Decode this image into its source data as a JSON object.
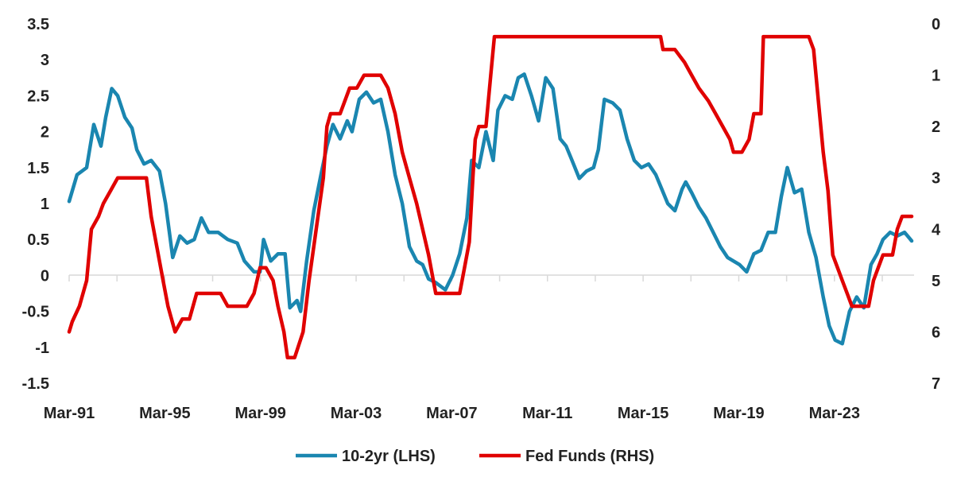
{
  "chart_data": {
    "type": "line",
    "title": "",
    "xlabel": "",
    "ylabel": "",
    "x_ticks": [
      "Mar-91",
      "Mar-95",
      "Mar-99",
      "Mar-03",
      "Mar-07",
      "Mar-11",
      "Mar-15",
      "Mar-19",
      "Mar-23"
    ],
    "y_left_ticks": [
      "3.5",
      "3",
      "2.5",
      "2",
      "1.5",
      "1",
      "0.5",
      "0",
      "-0.5",
      "-1",
      "-1.5"
    ],
    "y_right_ticks": [
      "0",
      "1",
      "2",
      "3",
      "4",
      "5",
      "6",
      "7"
    ],
    "y_left_range": [
      -1.5,
      3.5
    ],
    "y_right_range": [
      7,
      0
    ],
    "y_right_inverted": true,
    "x_range": [
      1991.17,
      2026.5
    ],
    "grid": false,
    "legend_position": "bottom",
    "series": [
      {
        "name": "10-2yr (LHS)",
        "axis": "left",
        "color": "#1a86b0",
        "points": [
          [
            1991.17,
            1.03
          ],
          [
            1991.5,
            1.4
          ],
          [
            1991.9,
            1.5
          ],
          [
            1992.2,
            2.1
          ],
          [
            1992.5,
            1.8
          ],
          [
            1992.7,
            2.2
          ],
          [
            1992.95,
            2.6
          ],
          [
            1993.2,
            2.5
          ],
          [
            1993.5,
            2.2
          ],
          [
            1993.8,
            2.05
          ],
          [
            1994.0,
            1.75
          ],
          [
            1994.3,
            1.55
          ],
          [
            1994.6,
            1.6
          ],
          [
            1994.95,
            1.45
          ],
          [
            1995.2,
            1.0
          ],
          [
            1995.5,
            0.25
          ],
          [
            1995.8,
            0.55
          ],
          [
            1996.1,
            0.45
          ],
          [
            1996.4,
            0.5
          ],
          [
            1996.7,
            0.8
          ],
          [
            1997.0,
            0.6
          ],
          [
            1997.4,
            0.6
          ],
          [
            1997.8,
            0.5
          ],
          [
            1998.2,
            0.45
          ],
          [
            1998.5,
            0.2
          ],
          [
            1998.9,
            0.05
          ],
          [
            1999.15,
            0.05
          ],
          [
            1999.3,
            0.5
          ],
          [
            1999.6,
            0.2
          ],
          [
            1999.9,
            0.3
          ],
          [
            2000.2,
            0.3
          ],
          [
            2000.4,
            -0.45
          ],
          [
            2000.7,
            -0.35
          ],
          [
            2000.85,
            -0.5
          ],
          [
            2001.1,
            0.2
          ],
          [
            2001.4,
            0.9
          ],
          [
            2001.7,
            1.4
          ],
          [
            2001.95,
            1.8
          ],
          [
            2002.2,
            2.1
          ],
          [
            2002.5,
            1.9
          ],
          [
            2002.8,
            2.15
          ],
          [
            2003.0,
            2.0
          ],
          [
            2003.3,
            2.45
          ],
          [
            2003.6,
            2.55
          ],
          [
            2003.9,
            2.4
          ],
          [
            2004.2,
            2.45
          ],
          [
            2004.5,
            2.0
          ],
          [
            2004.8,
            1.4
          ],
          [
            2005.1,
            1.0
          ],
          [
            2005.4,
            0.4
          ],
          [
            2005.7,
            0.2
          ],
          [
            2005.95,
            0.15
          ],
          [
            2006.2,
            -0.05
          ],
          [
            2006.5,
            -0.1
          ],
          [
            2006.9,
            -0.2
          ],
          [
            2007.2,
            0.0
          ],
          [
            2007.5,
            0.3
          ],
          [
            2007.8,
            0.8
          ],
          [
            2008.0,
            1.6
          ],
          [
            2008.3,
            1.5
          ],
          [
            2008.6,
            2.0
          ],
          [
            2008.9,
            1.6
          ],
          [
            2009.1,
            2.3
          ],
          [
            2009.4,
            2.5
          ],
          [
            2009.7,
            2.45
          ],
          [
            2009.95,
            2.75
          ],
          [
            2010.2,
            2.8
          ],
          [
            2010.5,
            2.5
          ],
          [
            2010.8,
            2.15
          ],
          [
            2011.1,
            2.75
          ],
          [
            2011.4,
            2.6
          ],
          [
            2011.7,
            1.9
          ],
          [
            2011.95,
            1.8
          ],
          [
            2012.2,
            1.6
          ],
          [
            2012.5,
            1.35
          ],
          [
            2012.8,
            1.45
          ],
          [
            2013.1,
            1.5
          ],
          [
            2013.3,
            1.75
          ],
          [
            2013.55,
            2.45
          ],
          [
            2013.9,
            2.4
          ],
          [
            2014.2,
            2.3
          ],
          [
            2014.5,
            1.9
          ],
          [
            2014.8,
            1.6
          ],
          [
            2015.1,
            1.5
          ],
          [
            2015.4,
            1.55
          ],
          [
            2015.7,
            1.4
          ],
          [
            2015.95,
            1.2
          ],
          [
            2016.2,
            1.0
          ],
          [
            2016.5,
            0.9
          ],
          [
            2016.8,
            1.2
          ],
          [
            2016.95,
            1.3
          ],
          [
            2017.2,
            1.15
          ],
          [
            2017.5,
            0.95
          ],
          [
            2017.8,
            0.8
          ],
          [
            2018.1,
            0.6
          ],
          [
            2018.4,
            0.4
          ],
          [
            2018.7,
            0.25
          ],
          [
            2018.95,
            0.2
          ],
          [
            2019.2,
            0.15
          ],
          [
            2019.5,
            0.05
          ],
          [
            2019.8,
            0.3
          ],
          [
            2020.1,
            0.35
          ],
          [
            2020.4,
            0.6
          ],
          [
            2020.7,
            0.6
          ],
          [
            2020.95,
            1.1
          ],
          [
            2021.2,
            1.5
          ],
          [
            2021.5,
            1.15
          ],
          [
            2021.8,
            1.2
          ],
          [
            2022.1,
            0.6
          ],
          [
            2022.4,
            0.25
          ],
          [
            2022.7,
            -0.3
          ],
          [
            2022.95,
            -0.7
          ],
          [
            2023.2,
            -0.9
          ],
          [
            2023.5,
            -0.95
          ],
          [
            2023.8,
            -0.5
          ],
          [
            2024.1,
            -0.3
          ],
          [
            2024.4,
            -0.45
          ],
          [
            2024.7,
            0.15
          ],
          [
            2024.95,
            0.3
          ],
          [
            2025.2,
            0.5
          ],
          [
            2025.5,
            0.6
          ],
          [
            2025.8,
            0.55
          ],
          [
            2026.1,
            0.6
          ],
          [
            2026.4,
            0.48
          ]
        ]
      },
      {
        "name": "Fed Funds (RHS)",
        "axis": "right",
        "color": "#e00000",
        "points": [
          [
            1991.17,
            6.0
          ],
          [
            1991.3,
            5.8
          ],
          [
            1991.6,
            5.5
          ],
          [
            1991.9,
            5.0
          ],
          [
            1992.1,
            4.0
          ],
          [
            1992.4,
            3.75
          ],
          [
            1992.6,
            3.5
          ],
          [
            1992.9,
            3.25
          ],
          [
            1993.2,
            3.0
          ],
          [
            1993.5,
            3.0
          ],
          [
            1994.0,
            3.0
          ],
          [
            1994.4,
            3.0
          ],
          [
            1994.6,
            3.75
          ],
          [
            1994.9,
            4.5
          ],
          [
            1995.1,
            5.0
          ],
          [
            1995.3,
            5.5
          ],
          [
            1995.6,
            6.0
          ],
          [
            1995.9,
            5.75
          ],
          [
            1996.2,
            5.75
          ],
          [
            1996.5,
            5.25
          ],
          [
            1997.0,
            5.25
          ],
          [
            1997.5,
            5.25
          ],
          [
            1997.8,
            5.5
          ],
          [
            1998.2,
            5.5
          ],
          [
            1998.6,
            5.5
          ],
          [
            1998.9,
            5.25
          ],
          [
            1999.15,
            4.75
          ],
          [
            1999.4,
            4.75
          ],
          [
            1999.7,
            5.0
          ],
          [
            1999.9,
            5.5
          ],
          [
            2000.15,
            6.0
          ],
          [
            2000.3,
            6.5
          ],
          [
            2000.6,
            6.5
          ],
          [
            2000.95,
            6.0
          ],
          [
            2001.2,
            5.0
          ],
          [
            2001.5,
            4.0
          ],
          [
            2001.8,
            3.0
          ],
          [
            2001.95,
            2.0
          ],
          [
            2002.1,
            1.75
          ],
          [
            2002.5,
            1.75
          ],
          [
            2002.9,
            1.25
          ],
          [
            2003.2,
            1.25
          ],
          [
            2003.5,
            1.0
          ],
          [
            2003.9,
            1.0
          ],
          [
            2004.2,
            1.0
          ],
          [
            2004.5,
            1.25
          ],
          [
            2004.8,
            1.75
          ],
          [
            2005.1,
            2.5
          ],
          [
            2005.4,
            3.0
          ],
          [
            2005.7,
            3.5
          ],
          [
            2005.95,
            4.0
          ],
          [
            2006.2,
            4.5
          ],
          [
            2006.5,
            5.25
          ],
          [
            2006.9,
            5.25
          ],
          [
            2007.2,
            5.25
          ],
          [
            2007.5,
            5.25
          ],
          [
            2007.7,
            4.75
          ],
          [
            2007.9,
            4.25
          ],
          [
            2008.05,
            3.0
          ],
          [
            2008.15,
            2.25
          ],
          [
            2008.3,
            2.0
          ],
          [
            2008.6,
            2.0
          ],
          [
            2008.8,
            1.0
          ],
          [
            2008.95,
            0.25
          ],
          [
            2009.3,
            0.25
          ],
          [
            2010.0,
            0.25
          ],
          [
            2011.0,
            0.25
          ],
          [
            2012.0,
            0.25
          ],
          [
            2013.0,
            0.25
          ],
          [
            2014.0,
            0.25
          ],
          [
            2015.0,
            0.25
          ],
          [
            2015.9,
            0.25
          ],
          [
            2016.0,
            0.5
          ],
          [
            2016.5,
            0.5
          ],
          [
            2016.9,
            0.75
          ],
          [
            2017.2,
            1.0
          ],
          [
            2017.5,
            1.25
          ],
          [
            2017.9,
            1.5
          ],
          [
            2018.2,
            1.75
          ],
          [
            2018.5,
            2.0
          ],
          [
            2018.8,
            2.25
          ],
          [
            2018.95,
            2.5
          ],
          [
            2019.3,
            2.5
          ],
          [
            2019.6,
            2.25
          ],
          [
            2019.8,
            1.75
          ],
          [
            2020.1,
            1.75
          ],
          [
            2020.2,
            0.25
          ],
          [
            2020.6,
            0.25
          ],
          [
            2021.0,
            0.25
          ],
          [
            2021.5,
            0.25
          ],
          [
            2022.1,
            0.25
          ],
          [
            2022.3,
            0.5
          ],
          [
            2022.5,
            1.5
          ],
          [
            2022.7,
            2.5
          ],
          [
            2022.9,
            3.25
          ],
          [
            2023.1,
            4.5
          ],
          [
            2023.3,
            4.75
          ],
          [
            2023.5,
            5.0
          ],
          [
            2023.7,
            5.25
          ],
          [
            2023.9,
            5.5
          ],
          [
            2024.3,
            5.5
          ],
          [
            2024.6,
            5.5
          ],
          [
            2024.8,
            5.0
          ],
          [
            2025.0,
            4.75
          ],
          [
            2025.2,
            4.5
          ],
          [
            2025.6,
            4.5
          ],
          [
            2025.8,
            4.0
          ],
          [
            2026.0,
            3.75
          ],
          [
            2026.4,
            3.75
          ]
        ]
      }
    ]
  }
}
